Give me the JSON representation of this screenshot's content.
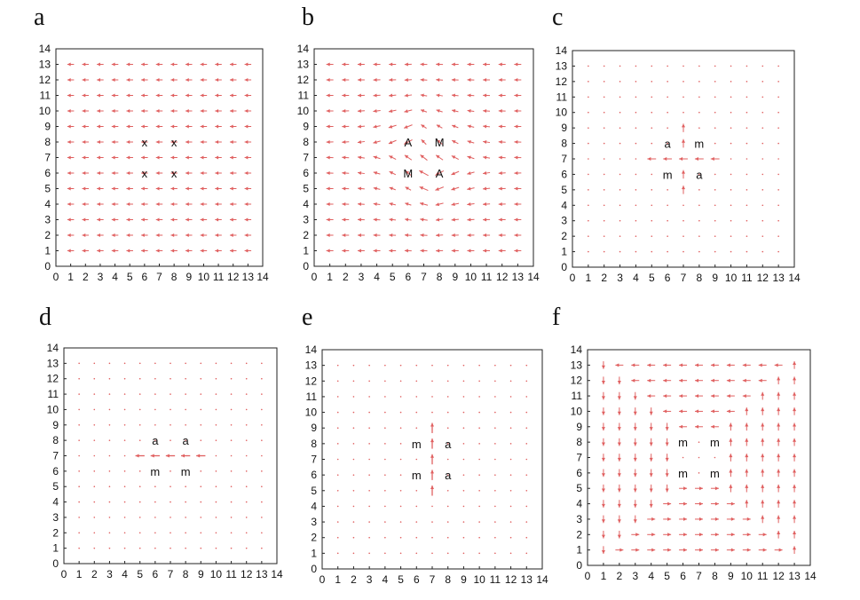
{
  "figure": {
    "panel_letters": [
      "a",
      "b",
      "c",
      "d",
      "e",
      "f"
    ]
  },
  "chart_data": [
    {
      "panel": "a",
      "type": "vector_field",
      "xlim": [
        0,
        14
      ],
      "ylim": [
        0,
        14
      ],
      "xticks": [
        0,
        1,
        2,
        3,
        4,
        5,
        6,
        7,
        8,
        9,
        10,
        11,
        12,
        13,
        14
      ],
      "yticks": [
        0,
        1,
        2,
        3,
        4,
        5,
        6,
        7,
        8,
        9,
        10,
        11,
        12,
        13,
        14
      ],
      "grid": false,
      "arrow_color": "#e06060",
      "field": "uniform leftward arrows along rows y=1..13, x=1..13",
      "labels": [
        {
          "text": "x",
          "x": 6,
          "y": 8
        },
        {
          "text": "x",
          "x": 8,
          "y": 8
        },
        {
          "text": "x",
          "x": 6,
          "y": 6
        },
        {
          "text": "x",
          "x": 8,
          "y": 6
        }
      ]
    },
    {
      "panel": "b",
      "type": "vector_field",
      "xlim": [
        0,
        14
      ],
      "ylim": [
        0,
        14
      ],
      "xticks": [
        0,
        1,
        2,
        3,
        4,
        5,
        6,
        7,
        8,
        9,
        10,
        11,
        12,
        13,
        14
      ],
      "yticks": [
        0,
        1,
        2,
        3,
        4,
        5,
        6,
        7,
        8,
        9,
        10,
        11,
        12,
        13,
        14
      ],
      "grid": false,
      "arrow_color": "#e06060",
      "field": "leftward arrows, tilted around the centre (7,7)",
      "labels": [
        {
          "text": "A",
          "x": 6,
          "y": 8
        },
        {
          "text": "M",
          "x": 8,
          "y": 8
        },
        {
          "text": "M",
          "x": 6,
          "y": 6
        },
        {
          "text": "A",
          "x": 8,
          "y": 6
        }
      ]
    },
    {
      "panel": "c",
      "type": "vector_field",
      "xlim": [
        0,
        14
      ],
      "ylim": [
        0,
        14
      ],
      "xticks": [
        0,
        1,
        2,
        3,
        4,
        5,
        6,
        7,
        8,
        9,
        10,
        11,
        12,
        13,
        14
      ],
      "yticks": [
        0,
        1,
        2,
        3,
        4,
        5,
        6,
        7,
        8,
        9,
        10,
        11,
        12,
        13,
        14
      ],
      "grid": false,
      "arrow_color": "#e06060",
      "field": "near-zero field with a cross-shaped flow at the centre",
      "labels": [
        {
          "text": "a",
          "x": 6,
          "y": 8
        },
        {
          "text": "m",
          "x": 8,
          "y": 8
        },
        {
          "text": "m",
          "x": 6,
          "y": 6
        },
        {
          "text": "a",
          "x": 8,
          "y": 6
        }
      ]
    },
    {
      "panel": "d",
      "type": "vector_field",
      "xlim": [
        0,
        14
      ],
      "ylim": [
        0,
        14
      ],
      "xticks": [
        0,
        1,
        2,
        3,
        4,
        5,
        6,
        7,
        8,
        9,
        10,
        11,
        12,
        13,
        14
      ],
      "yticks": [
        0,
        1,
        2,
        3,
        4,
        5,
        6,
        7,
        8,
        9,
        10,
        11,
        12,
        13,
        14
      ],
      "grid": false,
      "arrow_color": "#e06060",
      "field": "near-zero field with a horizontal leftward line at y=7",
      "labels": [
        {
          "text": "a",
          "x": 6,
          "y": 8
        },
        {
          "text": "a",
          "x": 8,
          "y": 8
        },
        {
          "text": "m",
          "x": 6,
          "y": 6
        },
        {
          "text": "m",
          "x": 8,
          "y": 6
        }
      ]
    },
    {
      "panel": "e",
      "type": "vector_field",
      "xlim": [
        0,
        14
      ],
      "ylim": [
        0,
        14
      ],
      "xticks": [
        0,
        1,
        2,
        3,
        4,
        5,
        6,
        7,
        8,
        9,
        10,
        11,
        12,
        13,
        14
      ],
      "yticks": [
        0,
        1,
        2,
        3,
        4,
        5,
        6,
        7,
        8,
        9,
        10,
        11,
        12,
        13,
        14
      ],
      "grid": false,
      "arrow_color": "#e06060",
      "field": "near-zero field with a vertical upward line at x=7",
      "labels": [
        {
          "text": "m",
          "x": 6,
          "y": 8
        },
        {
          "text": "a",
          "x": 8,
          "y": 8
        },
        {
          "text": "m",
          "x": 6,
          "y": 6
        },
        {
          "text": "a",
          "x": 8,
          "y": 6
        }
      ]
    },
    {
      "panel": "f",
      "type": "vector_field",
      "xlim": [
        0,
        14
      ],
      "ylim": [
        0,
        14
      ],
      "xticks": [
        0,
        1,
        2,
        3,
        4,
        5,
        6,
        7,
        8,
        9,
        10,
        11,
        12,
        13,
        14
      ],
      "yticks": [
        0,
        1,
        2,
        3,
        4,
        5,
        6,
        7,
        8,
        9,
        10,
        11,
        12,
        13,
        14
      ],
      "grid": false,
      "arrow_color": "#e06060",
      "field": "concentric square loops circulating around the centre (7,7)",
      "labels": [
        {
          "text": "m",
          "x": 6,
          "y": 8
        },
        {
          "text": "m",
          "x": 8,
          "y": 8
        },
        {
          "text": "m",
          "x": 6,
          "y": 6
        },
        {
          "text": "m",
          "x": 8,
          "y": 6
        }
      ]
    }
  ]
}
